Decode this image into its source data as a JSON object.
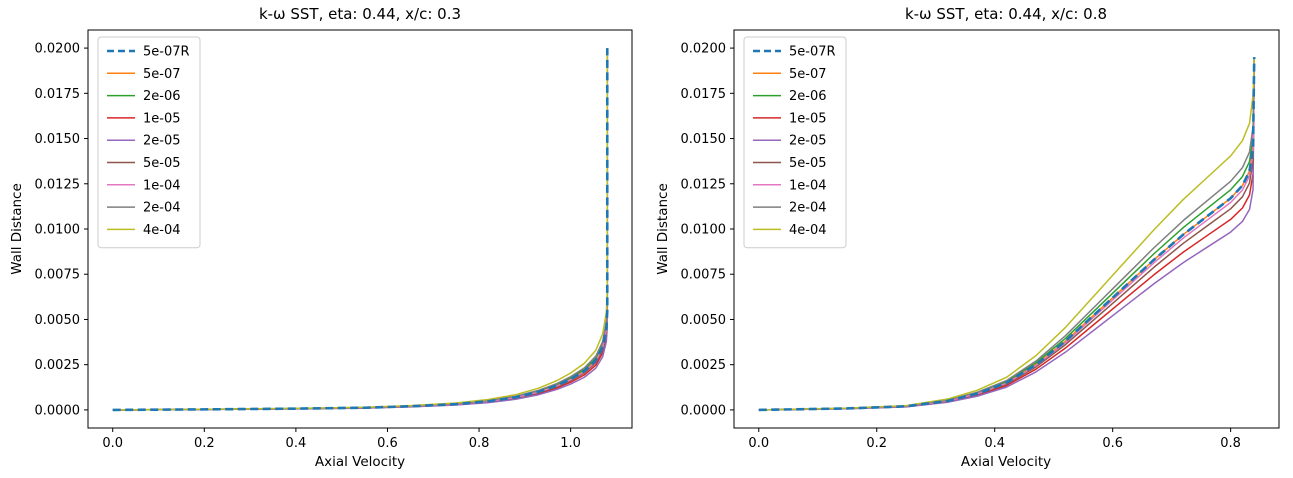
{
  "chart_data": [
    {
      "type": "line",
      "title": "k-ω SST, eta: 0.44, x/c: 0.3",
      "xlabel": "Axial Velocity",
      "ylabel": "Wall Distance",
      "xlim": [
        -0.054,
        1.134
      ],
      "ylim": [
        -0.001,
        0.021
      ],
      "xticks": [
        0.0,
        0.2,
        0.4,
        0.6,
        0.8,
        1.0
      ],
      "xtick_labels": [
        "0.0",
        "0.2",
        "0.4",
        "0.6",
        "0.8",
        "1.0"
      ],
      "yticks": [
        0.0,
        0.0025,
        0.005,
        0.0075,
        0.01,
        0.0125,
        0.015,
        0.0175,
        0.02
      ],
      "ytick_labels": [
        "0.0000",
        "0.0025",
        "0.0050",
        "0.0075",
        "0.0100",
        "0.0125",
        "0.0150",
        "0.0175",
        "0.0200"
      ],
      "grid": false,
      "legend_position": "upper-left",
      "x": [
        0,
        0.2,
        0.4,
        0.55,
        0.65,
        0.75,
        0.82,
        0.88,
        0.93,
        0.97,
        1.0,
        1.03,
        1.055,
        1.07,
        1.078,
        1.08,
        1.08
      ],
      "series": [
        {
          "name": "5e-07R",
          "color": "#1f77b4",
          "dash": true,
          "width": 2.6,
          "y": [
            0,
            3e-05,
            7e-05,
            0.00012,
            0.0002,
            0.00032,
            0.00048,
            0.0007,
            0.001,
            0.00135,
            0.0017,
            0.00215,
            0.00275,
            0.0035,
            0.0045,
            0.0055,
            0.02
          ]
        },
        {
          "name": "5e-07",
          "color": "#ff7f0e",
          "dash": false,
          "width": 1.5,
          "y": [
            0,
            3e-05,
            7e-05,
            0.00012,
            0.0002,
            0.00032,
            0.00048,
            0.0007,
            0.001,
            0.00135,
            0.0017,
            0.00215,
            0.00275,
            0.0035,
            0.0045,
            0.0055,
            0.02
          ]
        },
        {
          "name": "2e-06",
          "color": "#2ca02c",
          "dash": false,
          "width": 1.5,
          "y": [
            0,
            3.1e-05,
            7.3e-05,
            0.000125,
            0.000208,
            0.000333,
            0.000499,
            0.000728,
            0.00104,
            0.001404,
            0.001768,
            0.002236,
            0.00286,
            0.00364,
            0.00468,
            0.00572,
            0.02
          ]
        },
        {
          "name": "1e-05",
          "color": "#d62728",
          "dash": false,
          "width": 1.5,
          "y": [
            0,
            2.7e-05,
            6.3e-05,
            0.000108,
            0.00018,
            0.000288,
            0.000432,
            0.00063,
            0.0009,
            0.001215,
            0.00153,
            0.001935,
            0.002475,
            0.00315,
            0.00405,
            0.00495,
            0.02
          ]
        },
        {
          "name": "2e-05",
          "color": "#9467bd",
          "dash": false,
          "width": 1.5,
          "y": [
            0,
            2.5e-05,
            5.9e-05,
            0.000101,
            0.000168,
            0.000269,
            0.000403,
            0.000588,
            0.00084,
            0.001134,
            0.001428,
            0.001806,
            0.00231,
            0.00294,
            0.00378,
            0.00462,
            0.02
          ]
        },
        {
          "name": "5e-05",
          "color": "#8c564b",
          "dash": false,
          "width": 1.5,
          "y": [
            0,
            2.9e-05,
            6.7e-05,
            0.000114,
            0.00019,
            0.000304,
            0.000456,
            0.000665,
            0.00095,
            0.001283,
            0.001615,
            0.002043,
            0.002613,
            0.003325,
            0.004275,
            0.005225,
            0.02
          ]
        },
        {
          "name": "1e-04",
          "color": "#e377c2",
          "dash": false,
          "width": 1.5,
          "y": [
            0,
            2.9e-05,
            6.9e-05,
            0.000118,
            0.000196,
            0.000314,
            0.00047,
            0.000686,
            0.00098,
            0.001323,
            0.001666,
            0.002107,
            0.002695,
            0.00343,
            0.00441,
            0.00539,
            0.02
          ]
        },
        {
          "name": "2e-04",
          "color": "#7f7f7f",
          "dash": false,
          "width": 1.5,
          "y": [
            0,
            3.2e-05,
            7.6e-05,
            0.00013,
            0.000216,
            0.000346,
            0.000518,
            0.000756,
            0.00108,
            0.001458,
            0.001836,
            0.002322,
            0.00297,
            0.00378,
            0.00486,
            0.00594,
            0.02
          ]
        },
        {
          "name": "4e-04",
          "color": "#bcbd22",
          "dash": false,
          "width": 1.5,
          "y": [
            0,
            3.6e-05,
            8.4e-05,
            0.000144,
            0.00024,
            0.000384,
            0.000576,
            0.00084,
            0.0012,
            0.00162,
            0.00204,
            0.00258,
            0.0033,
            0.0042,
            0.0054,
            0.0066,
            0.02
          ]
        }
      ]
    },
    {
      "type": "line",
      "title": "k-ω SST, eta: 0.44, x/c: 0.8",
      "xlabel": "Axial Velocity",
      "ylabel": "Wall Distance",
      "xlim": [
        -0.042,
        0.882
      ],
      "ylim": [
        -0.001,
        0.021
      ],
      "xticks": [
        0.0,
        0.2,
        0.4,
        0.6,
        0.8
      ],
      "xtick_labels": [
        "0.0",
        "0.2",
        "0.4",
        "0.6",
        "0.8"
      ],
      "yticks": [
        0.0,
        0.0025,
        0.005,
        0.0075,
        0.01,
        0.0125,
        0.015,
        0.0175,
        0.02
      ],
      "ytick_labels": [
        "0.0000",
        "0.0025",
        "0.0050",
        "0.0075",
        "0.0100",
        "0.0125",
        "0.0150",
        "0.0175",
        "0.0200"
      ],
      "grid": false,
      "legend_position": "upper-left",
      "x": [
        0,
        0.15,
        0.25,
        0.32,
        0.37,
        0.42,
        0.47,
        0.52,
        0.57,
        0.62,
        0.67,
        0.72,
        0.76,
        0.8,
        0.82,
        0.832,
        0.838,
        0.84
      ],
      "series": [
        {
          "name": "5e-07R",
          "color": "#1f77b4",
          "dash": true,
          "width": 2.6,
          "y": [
            0,
            8e-05,
            0.0002,
            0.0005,
            0.0009,
            0.0015,
            0.0025,
            0.0038,
            0.0053,
            0.0068,
            0.0083,
            0.0097,
            0.0107,
            0.0117,
            0.0124,
            0.0132,
            0.0145,
            0.0195
          ]
        },
        {
          "name": "5e-07",
          "color": "#ff7f0e",
          "dash": false,
          "width": 1.5,
          "y": [
            0,
            8e-05,
            0.0002,
            0.0005,
            0.0009,
            0.0015,
            0.0025,
            0.0038,
            0.0053,
            0.0068,
            0.0083,
            0.0097,
            0.0107,
            0.0117,
            0.0124,
            0.0132,
            0.0145,
            0.0195
          ]
        },
        {
          "name": "2e-06",
          "color": "#2ca02c",
          "dash": false,
          "width": 1.5,
          "y": [
            0,
            8.3e-05,
            0.000208,
            0.00052,
            0.000936,
            0.00156,
            0.0026,
            0.003952,
            0.005512,
            0.007072,
            0.008632,
            0.010088,
            0.011128,
            0.012168,
            0.012896,
            0.013728,
            0.01508,
            0.0195
          ]
        },
        {
          "name": "1e-05",
          "color": "#d62728",
          "dash": false,
          "width": 1.5,
          "y": [
            0,
            7.2e-05,
            0.00018,
            0.00045,
            0.00081,
            0.00135,
            0.00225,
            0.00342,
            0.00477,
            0.00612,
            0.00747,
            0.00873,
            0.00963,
            0.01053,
            0.01116,
            0.01188,
            0.01305,
            0.0195
          ]
        },
        {
          "name": "2e-05",
          "color": "#9467bd",
          "dash": false,
          "width": 1.5,
          "y": [
            0,
            6.7e-05,
            0.000168,
            0.00042,
            0.000756,
            0.00126,
            0.0021,
            0.003192,
            0.004452,
            0.005712,
            0.006972,
            0.008148,
            0.008988,
            0.009828,
            0.010416,
            0.011088,
            0.01218,
            0.0195
          ]
        },
        {
          "name": "5e-05",
          "color": "#8c564b",
          "dash": false,
          "width": 1.5,
          "y": [
            0,
            7.6e-05,
            0.00019,
            0.000475,
            0.000855,
            0.001425,
            0.002375,
            0.00361,
            0.005035,
            0.00646,
            0.007885,
            0.009215,
            0.010165,
            0.011115,
            0.01178,
            0.01254,
            0.013775,
            0.0195
          ]
        },
        {
          "name": "1e-04",
          "color": "#e377c2",
          "dash": false,
          "width": 1.5,
          "y": [
            0,
            7.8e-05,
            0.000196,
            0.00049,
            0.000882,
            0.00147,
            0.00245,
            0.003724,
            0.005194,
            0.006664,
            0.008134,
            0.009506,
            0.010486,
            0.011466,
            0.012152,
            0.012936,
            0.01421,
            0.0195
          ]
        },
        {
          "name": "2e-04",
          "color": "#7f7f7f",
          "dash": false,
          "width": 1.5,
          "y": [
            0,
            8.6e-05,
            0.000216,
            0.00054,
            0.000972,
            0.00162,
            0.0027,
            0.004104,
            0.005724,
            0.007344,
            0.008964,
            0.010476,
            0.011556,
            0.012636,
            0.013392,
            0.014256,
            0.01566,
            0.0195
          ]
        },
        {
          "name": "4e-04",
          "color": "#bcbd22",
          "dash": false,
          "width": 1.5,
          "y": [
            0,
            9.6e-05,
            0.00024,
            0.0006,
            0.00108,
            0.0018,
            0.003,
            0.00456,
            0.00636,
            0.00816,
            0.00996,
            0.01164,
            0.01284,
            0.01404,
            0.01488,
            0.01584,
            0.0174,
            0.0195
          ]
        }
      ]
    }
  ]
}
